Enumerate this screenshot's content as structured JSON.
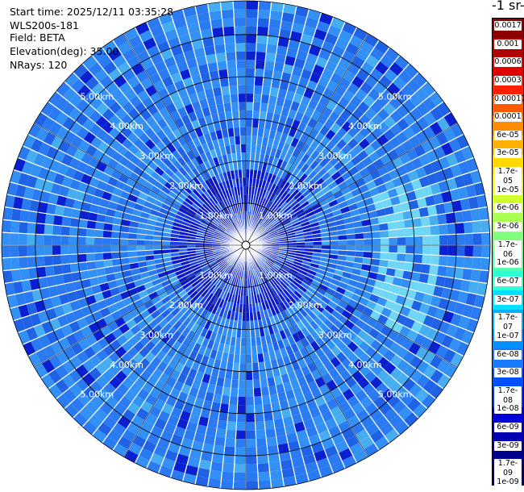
{
  "info": {
    "start_time": "Start time: 2025/12/11 03:35:28",
    "instrument": "WLS200s-181",
    "field": "Field: BETA",
    "elevation": "Elevation(deg): 35.00",
    "nrays": "NRays: 120"
  },
  "colorbar": {
    "title": "-1 sr-",
    "labels": [
      "0.0017",
      "0.001",
      "0.0006",
      "0.0003",
      "0.00017",
      "0.0001",
      "6e-05",
      "3e-05",
      "1.7e-05",
      "1e-05",
      "6e-06",
      "3e-06",
      "1.7e-06",
      "1e-06",
      "6e-07",
      "3e-07",
      "1.7e-07",
      "1e-07",
      "6e-08",
      "3e-08",
      "1.7e-08",
      "1e-08",
      "6e-09",
      "3e-09",
      "1.7e-09",
      "1e-09"
    ],
    "colors": [
      "#8b0000",
      "#b00000",
      "#e00000",
      "#ff2000",
      "#ff5a00",
      "#ff8c00",
      "#ffb000",
      "#ffd800",
      "#f4f400",
      "#d2ff2e",
      "#aaff55",
      "#80ff7e",
      "#55ffaa",
      "#2effd2",
      "#00e0ff",
      "#00b0ff",
      "#0090ff",
      "#1a7aff",
      "#0050ff",
      "#0030f0",
      "#0000d8",
      "#0000b0",
      "#00008f",
      "#000070"
    ]
  },
  "chart_data": {
    "type": "polar-ppi",
    "field": "BETA",
    "elevation_deg": 35.0,
    "n_rays": 120,
    "range_rings_km": [
      1,
      2,
      3,
      4,
      5
    ],
    "ring_labels": [
      "1.00km",
      "2.00km",
      "3.00km",
      "4.00km",
      "5.00km"
    ],
    "max_range_km": 5.8,
    "dominant_values": "approx 3e-08 to 1e-07 across the field; lower values (about 1e-08 to 3e-09) concentrated near the center; slightly higher values (about 1.7e-07) in a band to the east-southeast"
  }
}
